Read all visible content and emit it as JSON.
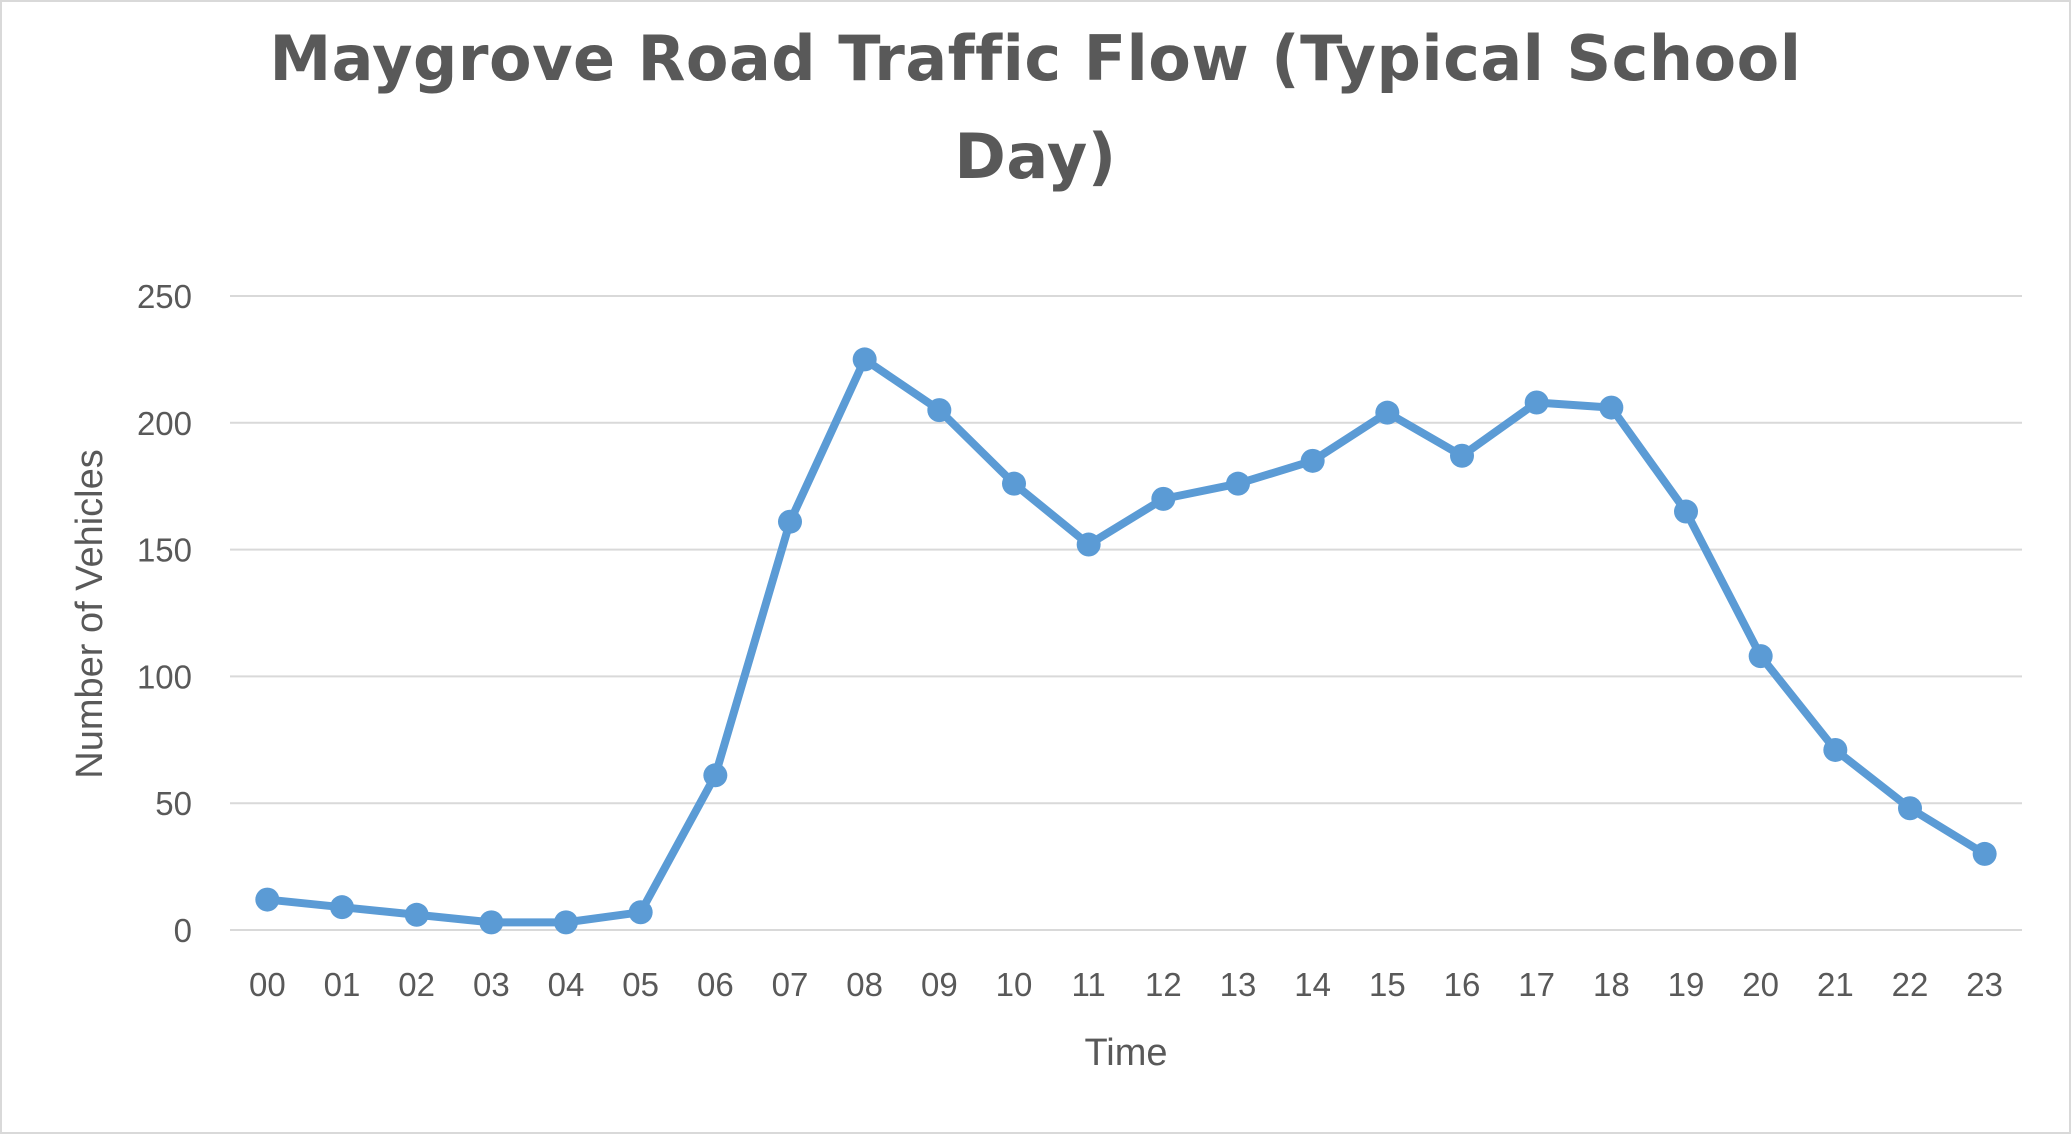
{
  "chart_data": {
    "type": "line",
    "title": "Maygrove Road Traffic Flow (Typical School Day)",
    "title_lines": [
      "Maygrove Road Traffic Flow (Typical School",
      "Day)"
    ],
    "xlabel": "Time",
    "ylabel": "Number of Vehicles",
    "categories": [
      "00",
      "01",
      "02",
      "03",
      "04",
      "05",
      "06",
      "07",
      "08",
      "09",
      "10",
      "11",
      "12",
      "13",
      "14",
      "15",
      "16",
      "17",
      "18",
      "19",
      "20",
      "21",
      "22",
      "23"
    ],
    "values": [
      12,
      9,
      6,
      3,
      3,
      7,
      61,
      161,
      225,
      205,
      176,
      152,
      170,
      176,
      185,
      204,
      187,
      208,
      206,
      165,
      108,
      71,
      48,
      30
    ],
    "ylim": [
      0,
      250
    ],
    "yticks": [
      0,
      50,
      100,
      150,
      200,
      250
    ],
    "grid": true,
    "legend": "none",
    "colors": {
      "line": "#5b9bd5",
      "grid": "#d9d9d9",
      "text": "#595959"
    }
  }
}
